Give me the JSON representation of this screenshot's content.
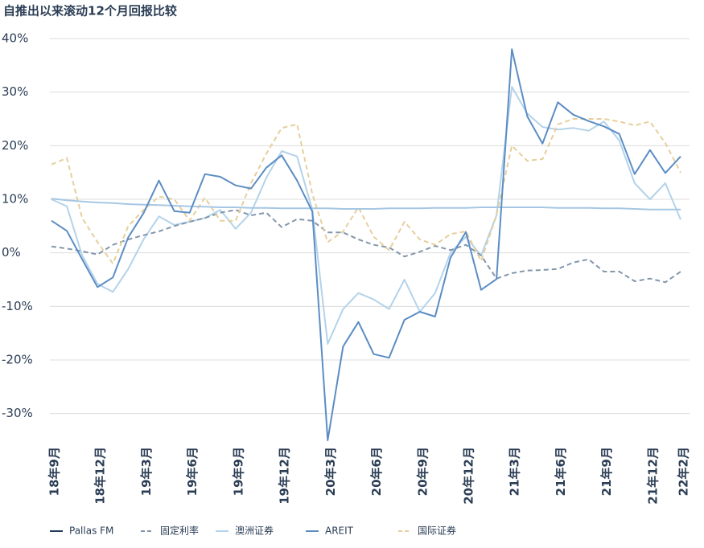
{
  "chart_data": {
    "type": "line",
    "title": "自推出以来滚动12个月回报比较",
    "categories": [
      "18年9月",
      null,
      null,
      "18年12月",
      null,
      null,
      "19年3月",
      null,
      null,
      "19年6月",
      null,
      null,
      "19年9月",
      null,
      null,
      "19年12月",
      null,
      null,
      "20年3月",
      null,
      null,
      "20年6月",
      null,
      null,
      "20年9月",
      null,
      null,
      "20年12月",
      null,
      null,
      "21年3月",
      null,
      null,
      "21年6月",
      null,
      null,
      "21年9月",
      null,
      null,
      "21年12月",
      null,
      "22年2月"
    ],
    "series": [
      {
        "name": "Pallas FM",
        "color": "#a6c7e3",
        "legend_color": "#1f3a5a",
        "style": "solid",
        "values": [
          10.1,
          9.8,
          9.6,
          9.4,
          9.3,
          9.1,
          9.0,
          8.9,
          8.8,
          8.7,
          8.6,
          8.5,
          8.5,
          8.4,
          8.4,
          8.3,
          8.3,
          8.3,
          8.3,
          8.2,
          8.2,
          8.2,
          8.3,
          8.3,
          8.3,
          8.4,
          8.4,
          8.4,
          8.5,
          8.5,
          8.5,
          8.5,
          8.5,
          8.4,
          8.4,
          8.4,
          8.3,
          8.3,
          8.2,
          8.1,
          8.1,
          8.1
        ]
      },
      {
        "name": "固定利率",
        "color": "#8396ab",
        "style": "dashed",
        "values": [
          1.2,
          0.8,
          0.3,
          -0.3,
          1.5,
          2.5,
          3.3,
          4,
          5,
          5.8,
          6.5,
          7.5,
          8,
          7,
          7.5,
          4.8,
          6.3,
          6,
          3.8,
          3.8,
          2.5,
          1.5,
          1,
          -0.7,
          0.2,
          1.3,
          0.5,
          1.5,
          -0.5,
          -4.8,
          -3.8,
          -3.3,
          -3.2,
          -3,
          -1.8,
          -1.2,
          -3.5,
          -3.5,
          -5.3,
          -4.8,
          -5.5,
          -3.5
        ]
      },
      {
        "name": "澳洲证券",
        "color": "#b3d3ea",
        "style": "solid",
        "values": [
          10,
          8.7,
          -0.5,
          -5.8,
          -7.3,
          -3,
          2.5,
          6.8,
          5.2,
          5.8,
          6.5,
          8,
          4.5,
          7.5,
          14,
          19,
          18,
          8,
          -17,
          -10.5,
          -7.5,
          -8.7,
          -10.5,
          -5,
          -11,
          -7.5,
          0,
          3,
          -0.5,
          7,
          31,
          26,
          23.5,
          23,
          23.3,
          22.8,
          24.5,
          21,
          13,
          10,
          13,
          6.2
        ]
      },
      {
        "name": "AREIT",
        "color": "#5b8dc4",
        "style": "solid",
        "values": [
          6.0,
          4.1,
          -1.2,
          -6.4,
          -4.6,
          2.9,
          7.4,
          13.5,
          7.8,
          7.5,
          14.7,
          14.2,
          12.6,
          12.0,
          15.9,
          18.2,
          13.5,
          7.7,
          -35,
          -17.5,
          -12.9,
          -18.9,
          -19.6,
          -12.5,
          -11.0,
          -11.9,
          -0.9,
          3.9,
          -6.9,
          -4.9,
          38,
          25.5,
          20.4,
          28.1,
          25.8,
          24.6,
          23.6,
          22.2,
          14.7,
          19.2,
          14.9,
          18.0
        ]
      },
      {
        "name": "国际证券",
        "color": "#e6cf9c",
        "style": "dashed",
        "values": [
          16.5,
          17.7,
          6.5,
          2,
          -2,
          5,
          8,
          10.5,
          10,
          6,
          10.3,
          6,
          6,
          13,
          18.5,
          23.3,
          24,
          11,
          2,
          4,
          8.5,
          3,
          0.5,
          5.8,
          2.5,
          1.5,
          3.5,
          4,
          -1.5,
          7,
          20,
          17.2,
          17.5,
          24,
          25,
          25,
          25,
          24.5,
          23.8,
          24.5,
          20.5,
          15
        ]
      }
    ],
    "ylim": [
      -35,
      40
    ],
    "yticks": [
      {
        "value": 40,
        "label": "40%"
      },
      {
        "value": 30,
        "label": "30%"
      },
      {
        "value": 20,
        "label": "20%"
      },
      {
        "value": 10,
        "label": "10%"
      },
      {
        "value": 0,
        "label": "0%"
      },
      {
        "value": -10,
        "label": "-10%"
      },
      {
        "value": -20,
        "label": "-20%"
      },
      {
        "value": -30,
        "label": "-30%"
      }
    ],
    "grid": true,
    "legend": "bottom"
  }
}
